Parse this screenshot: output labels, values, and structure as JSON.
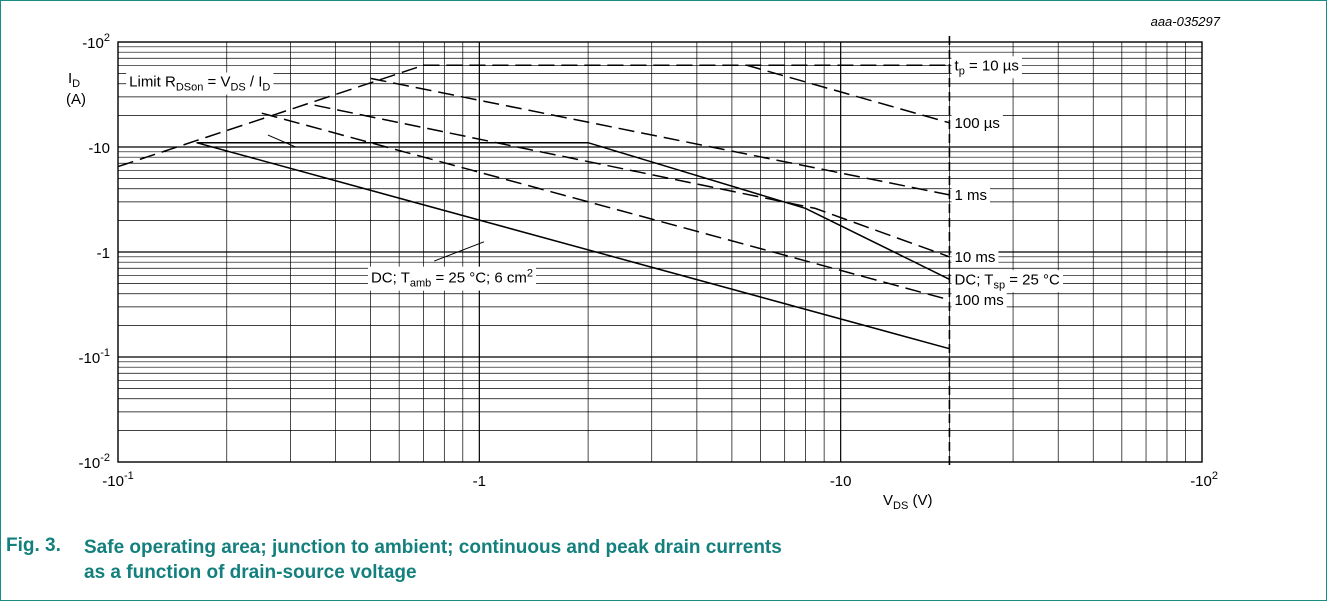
{
  "figure": {
    "id": "aaa-035297",
    "number": "Fig. 3.",
    "caption": "Safe operating area; junction to ambient; continuous and peak drain currents as a function of drain-source voltage"
  },
  "chart_data": {
    "type": "line",
    "xscale": "log",
    "yscale": "log",
    "xlim": [
      -0.1,
      -100
    ],
    "ylim": [
      -0.01,
      -100
    ],
    "grid": true,
    "xlabel": {
      "main": "V",
      "sub": "DS",
      "unit": " (V)"
    },
    "ylabel": {
      "main": "I",
      "sub": "D",
      "unit": "(A)"
    },
    "x_ticks": [
      {
        "value": -0.1,
        "base": "-10",
        "exp": "-1"
      },
      {
        "value": -1,
        "base": "-1",
        "exp": ""
      },
      {
        "value": -10,
        "base": "-10",
        "exp": ""
      },
      {
        "value": -100,
        "base": "-10",
        "exp": "2"
      }
    ],
    "y_ticks": [
      {
        "value": -100,
        "base": "-10",
        "exp": "2"
      },
      {
        "value": -10,
        "base": "-10",
        "exp": ""
      },
      {
        "value": -1,
        "base": "-1",
        "exp": ""
      },
      {
        "value": -0.1,
        "base": "-10",
        "exp": "-1"
      },
      {
        "value": -0.01,
        "base": "-10",
        "exp": "-2"
      }
    ],
    "vertical_limit_x": -20,
    "series": [
      {
        "name": "Limit RDSon = VDS / ID",
        "style": "dashed",
        "points": [
          [
            -0.1,
            -6.5
          ],
          [
            -0.7,
            -60
          ]
        ]
      },
      {
        "name": "tp = 10 µs",
        "style": "dashed",
        "points": [
          [
            -0.7,
            -60
          ],
          [
            -20,
            -60
          ]
        ]
      },
      {
        "name": "100 µs",
        "style": "dashed",
        "points": [
          [
            -0.7,
            -60
          ],
          [
            -5.5,
            -60
          ],
          [
            -20,
            -17
          ]
        ]
      },
      {
        "name": "1 ms",
        "style": "dashed",
        "points": [
          [
            -0.5,
            -45
          ],
          [
            -20,
            -3.5
          ]
        ]
      },
      {
        "name": "10 ms",
        "style": "dashed",
        "points": [
          [
            -0.35,
            -25
          ],
          [
            -8.5,
            -2.6
          ],
          [
            -20,
            -0.9
          ]
        ]
      },
      {
        "name": "100 ms",
        "style": "dashed",
        "points": [
          [
            -0.25,
            -21
          ],
          [
            -20,
            -0.35
          ]
        ]
      },
      {
        "name": "DC; Tsp = 25 °C",
        "style": "solid",
        "points": [
          [
            -0.165,
            -11
          ],
          [
            -2,
            -11
          ],
          [
            -8,
            -2.6
          ],
          [
            -20,
            -0.55
          ]
        ]
      },
      {
        "name": "DC; Tamb = 25 °C; 6 cm2",
        "style": "solid",
        "points": [
          [
            -0.165,
            -11
          ],
          [
            -20,
            -0.12
          ]
        ]
      }
    ],
    "labels": [
      {
        "name": "label-tp-10us",
        "parts": [
          [
            "t",
            ""
          ],
          [
            "p",
            "sub"
          ],
          [
            " = 10 µs",
            ""
          ]
        ],
        "x": -20.4,
        "y": -60,
        "anchor": "start",
        "box": true
      },
      {
        "name": "label-100us",
        "parts": [
          [
            "100 µs",
            ""
          ]
        ],
        "x": -20.4,
        "y": -17,
        "anchor": "start",
        "box": true
      },
      {
        "name": "label-1ms",
        "parts": [
          [
            "1 ms",
            ""
          ]
        ],
        "x": -20.4,
        "y": -3.5,
        "anchor": "start",
        "box": true
      },
      {
        "name": "label-10ms",
        "parts": [
          [
            "10 ms",
            ""
          ]
        ],
        "x": -20.4,
        "y": -0.9,
        "anchor": "start",
        "box": true
      },
      {
        "name": "label-dc-tsp",
        "parts": [
          [
            "DC; T",
            ""
          ],
          [
            "sp",
            "sub"
          ],
          [
            " = 25 °C",
            ""
          ]
        ],
        "x": -20.4,
        "y": -0.55,
        "anchor": "start",
        "box": true
      },
      {
        "name": "label-100ms",
        "parts": [
          [
            "100 ms",
            ""
          ]
        ],
        "x": -20.4,
        "y": -0.35,
        "anchor": "start",
        "box": true
      },
      {
        "name": "label-limit-rdson",
        "parts": [
          [
            "Limit R",
            ""
          ],
          [
            "DSon",
            "sub"
          ],
          [
            " = V",
            ""
          ],
          [
            "DS",
            "sub"
          ],
          [
            " / I",
            ""
          ],
          [
            "D",
            "sub"
          ]
        ],
        "x": -0.106,
        "y": -42,
        "anchor": "start",
        "box": true
      },
      {
        "name": "label-dc-tamb",
        "parts": [
          [
            "DC; T",
            ""
          ],
          [
            "amb",
            "sub"
          ],
          [
            " = 25 °C; 6 cm",
            ""
          ],
          [
            "2",
            "sup"
          ]
        ],
        "x": -0.495,
        "y": -0.57,
        "anchor": "start",
        "box": true
      }
    ],
    "leaders": [
      {
        "name": "leader-limit",
        "from": [
          -0.26,
          -13
        ],
        "to": [
          -0.31,
          -10
        ]
      },
      {
        "name": "leader-dc-tamb",
        "from": [
          -0.75,
          -0.82
        ],
        "to": [
          -1.03,
          -1.25
        ]
      }
    ]
  }
}
